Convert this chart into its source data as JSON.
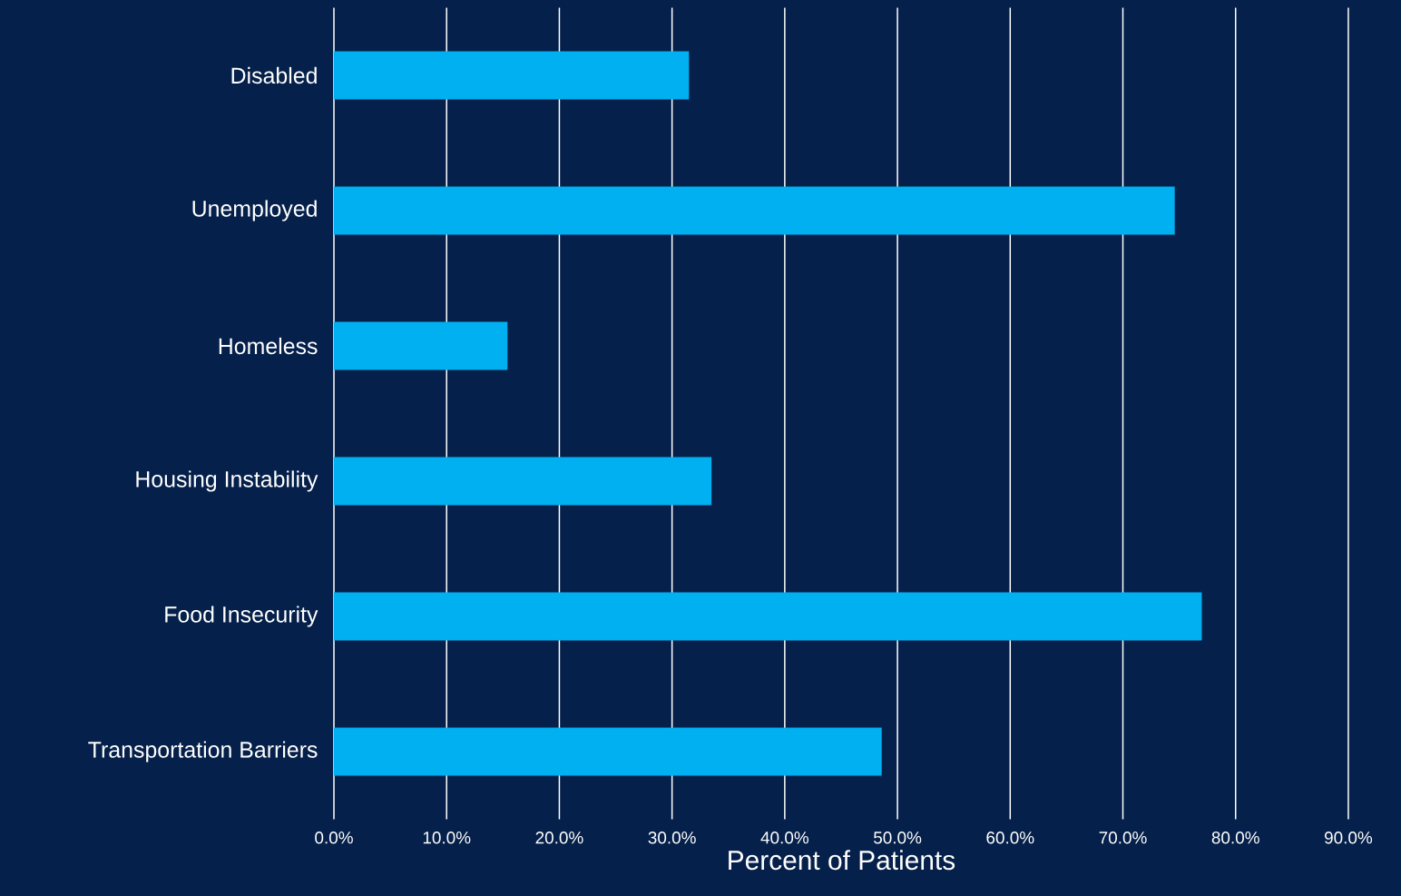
{
  "chart_data": {
    "type": "bar",
    "orientation": "horizontal",
    "categories": [
      "Disabled",
      "Unemployed",
      "Homeless",
      "Housing Instability",
      "Food Insecurity",
      "Transportation Barriers"
    ],
    "values": [
      31.5,
      74.6,
      15.4,
      33.5,
      77.0,
      48.6
    ],
    "color": "#00b0f0",
    "xlabel": "Percent of Patients",
    "xlim": [
      0,
      90
    ],
    "xticks": [
      {
        "value": 0,
        "label": "0.0%"
      },
      {
        "value": 10,
        "label": "10.0%"
      },
      {
        "value": 20,
        "label": "20.0%"
      },
      {
        "value": 30,
        "label": "30.0%"
      },
      {
        "value": 40,
        "label": "40.0%"
      },
      {
        "value": 50,
        "label": "50.0%"
      },
      {
        "value": 60,
        "label": "60.0%"
      },
      {
        "value": 70,
        "label": "70.0%"
      },
      {
        "value": 80,
        "label": "80.0%"
      },
      {
        "value": 90,
        "label": "90.0%"
      }
    ],
    "grid": "x"
  }
}
